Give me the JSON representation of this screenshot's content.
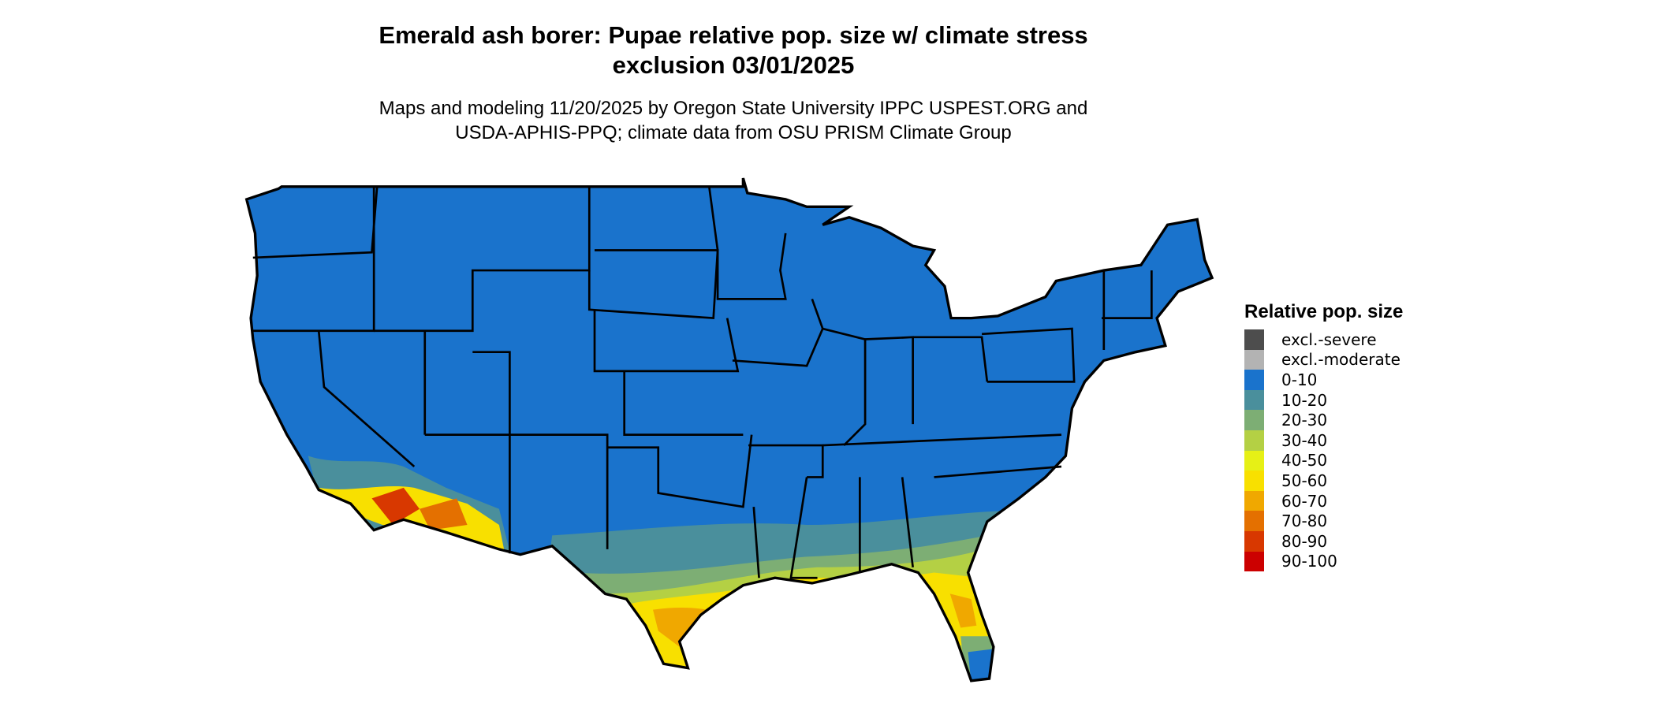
{
  "title": "Emerald ash borer: Pupae relative pop. size w/ climate stress exclusion 03/01/2025",
  "title_lines": [
    "Emerald ash borer: Pupae relative pop. size w/ climate stress",
    "exclusion 03/01/2025"
  ],
  "subtitle_lines": [
    "Maps and modeling 11/20/2025 by Oregon State University IPPC USPEST.ORG and",
    "USDA-APHIS-PPQ; climate data from OSU PRISM Climate Group"
  ],
  "legend": {
    "title": "Relative pop. size",
    "items": [
      {
        "label": "excl.-severe",
        "color": "#4d4d4d"
      },
      {
        "label": "excl.-moderate",
        "color": "#b3b3b3"
      },
      {
        "label": "0-10",
        "color": "#1a73cc"
      },
      {
        "label": "10-20",
        "color": "#4a8f9c"
      },
      {
        "label": "20-30",
        "color": "#7dae74"
      },
      {
        "label": "30-40",
        "color": "#b4d044"
      },
      {
        "label": "40-50",
        "color": "#e6f016"
      },
      {
        "label": "50-60",
        "color": "#f8e000"
      },
      {
        "label": "60-70",
        "color": "#f0a800"
      },
      {
        "label": "70-80",
        "color": "#e47000"
      },
      {
        "label": "80-90",
        "color": "#d83800"
      },
      {
        "label": "90-100",
        "color": "#cc0000"
      }
    ]
  }
}
